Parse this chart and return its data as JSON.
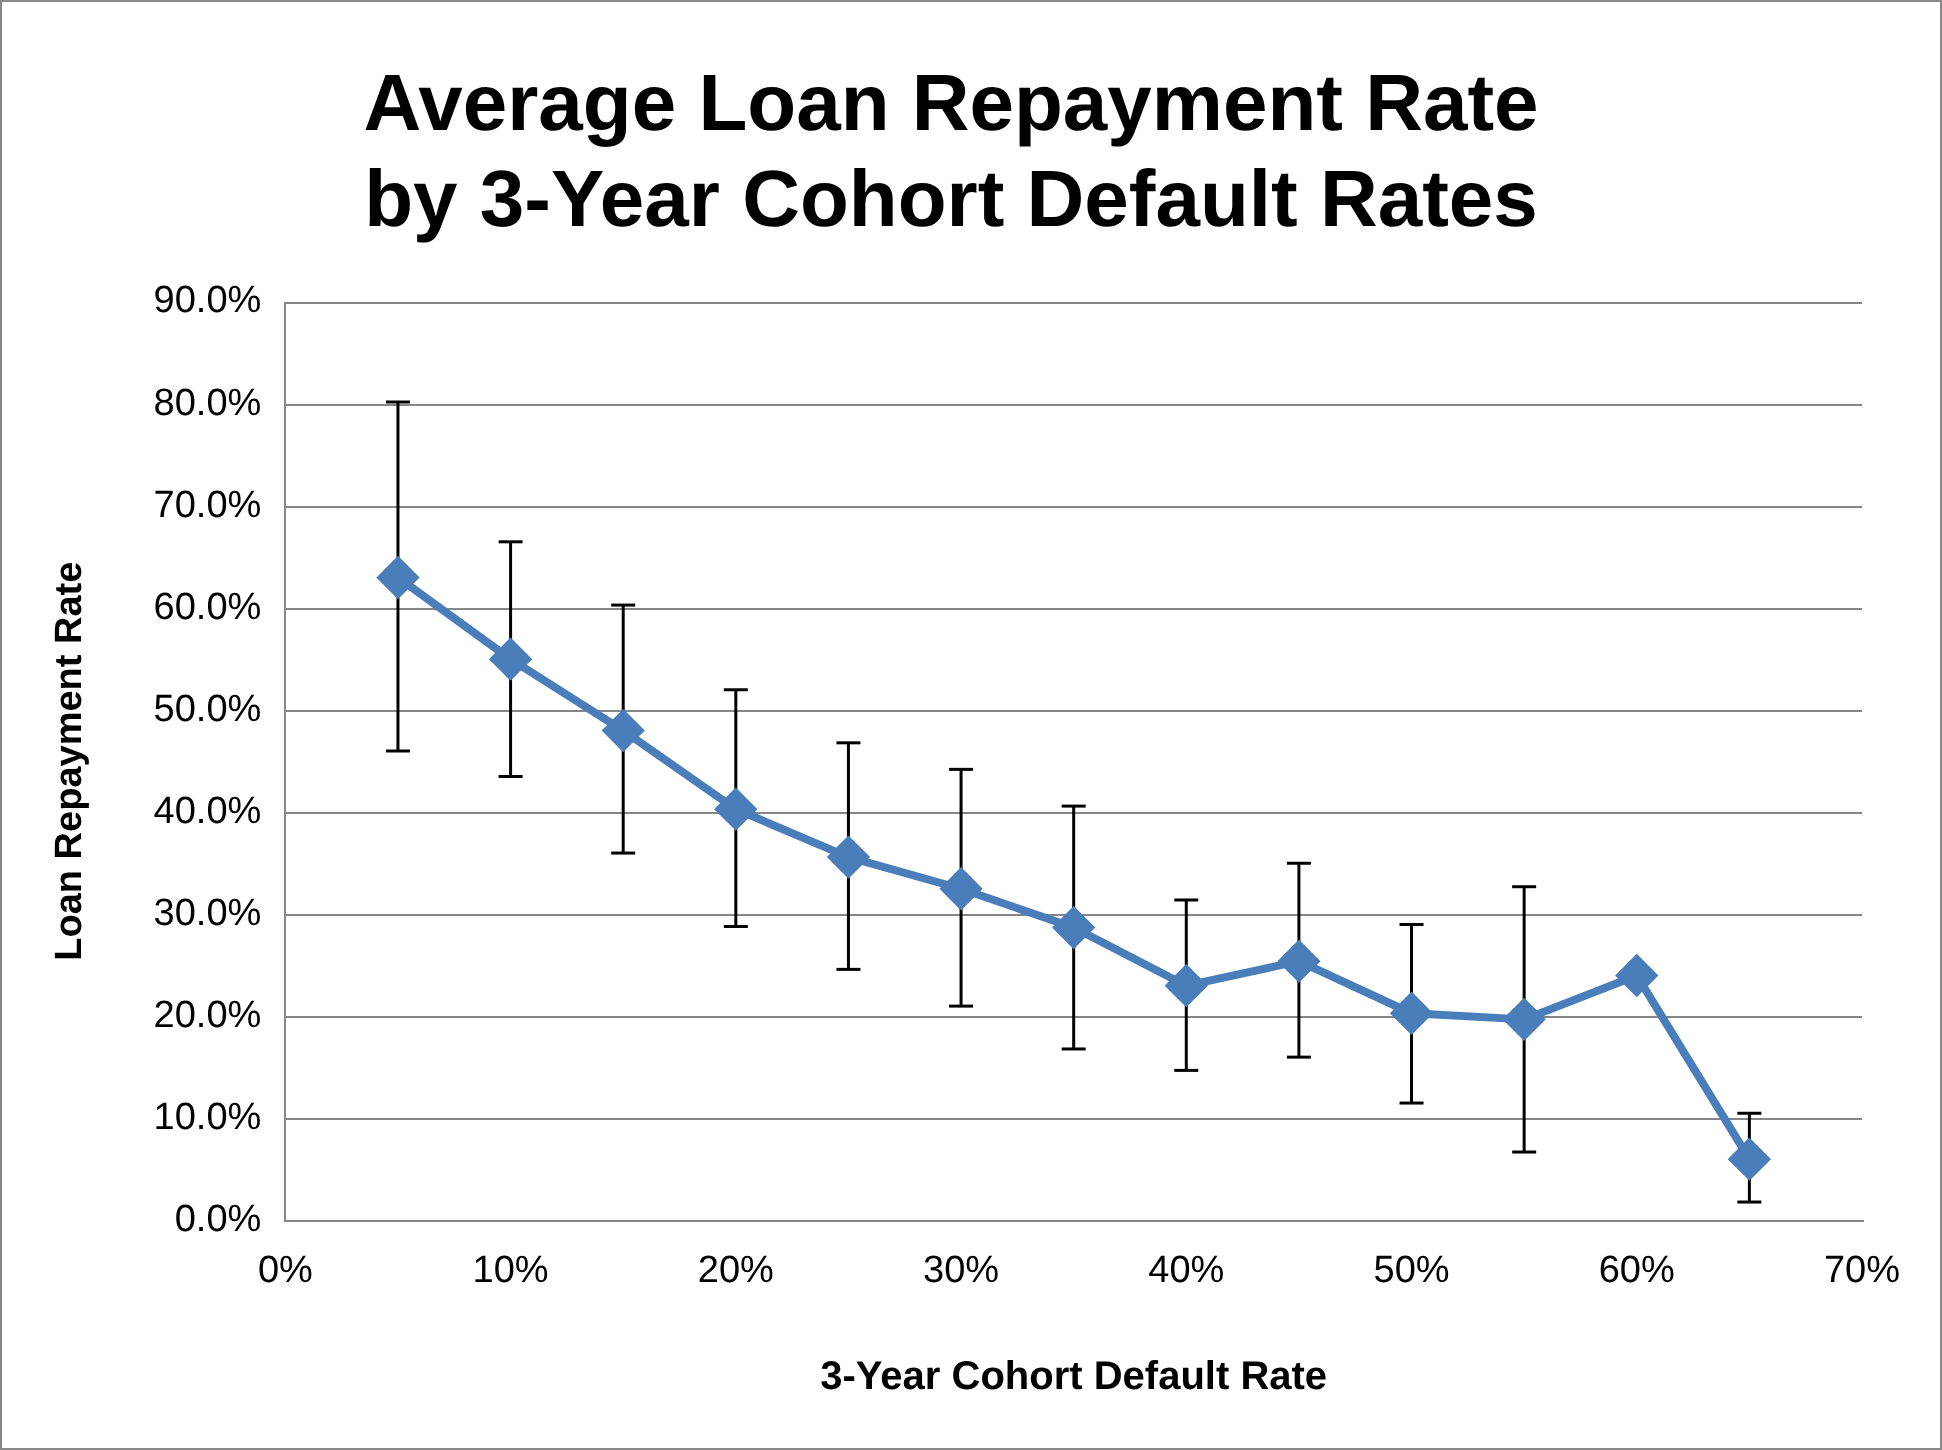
{
  "chart_data": {
    "type": "line",
    "title": "Average Loan Repayment Rate\nby 3-Year Cohort Default Rates",
    "xlabel": "3-Year Cohort Default Rate",
    "ylabel": "Loan Repayment Rate",
    "x": [
      5,
      10,
      15,
      20,
      25,
      30,
      35,
      40,
      45,
      50,
      55,
      60,
      65
    ],
    "series": [
      {
        "color": "#4a7ebb",
        "values": [
          63.0,
          55.0,
          48.0,
          40.3,
          35.6,
          32.5,
          28.7,
          23.0,
          25.4,
          20.3,
          19.7,
          24.0,
          6.0
        ],
        "errors": [
          [
            46,
            80.2
          ],
          [
            43.5,
            66.5
          ],
          [
            36,
            60.3
          ],
          [
            28.8,
            52
          ],
          [
            24.6,
            46.8
          ],
          [
            21,
            44.2
          ],
          [
            16.8,
            40.6
          ],
          [
            14.7,
            31.4
          ],
          [
            16,
            35
          ],
          [
            11.5,
            29
          ],
          [
            6.7,
            32.7
          ],
          null,
          [
            1.8,
            10.5
          ]
        ]
      }
    ],
    "xlim": [
      0,
      70
    ],
    "xticks": [
      {
        "value": 0,
        "label": "0%"
      },
      {
        "value": 10,
        "label": "10%"
      },
      {
        "value": 20,
        "label": "20%"
      },
      {
        "value": 30,
        "label": "30%"
      },
      {
        "value": 40,
        "label": "40%"
      },
      {
        "value": 50,
        "label": "50%"
      },
      {
        "value": 60,
        "label": "60%"
      },
      {
        "value": 70,
        "label": "70%"
      }
    ],
    "ylim": [
      0,
      90
    ],
    "yticks": [
      {
        "value": 0,
        "label": "0.0%"
      },
      {
        "value": 10,
        "label": "10.0%"
      },
      {
        "value": 20,
        "label": "20.0%"
      },
      {
        "value": 30,
        "label": "30.0%"
      },
      {
        "value": 40,
        "label": "40.0%"
      },
      {
        "value": 50,
        "label": "50.0%"
      },
      {
        "value": 60,
        "label": "60.0%"
      },
      {
        "value": 70,
        "label": "70.0%"
      },
      {
        "value": 80,
        "label": "80.0%"
      },
      {
        "value": 90,
        "label": "90.0%"
      }
    ],
    "grid": "y",
    "legend": false,
    "marker": "diamond",
    "line_style": "solid"
  }
}
